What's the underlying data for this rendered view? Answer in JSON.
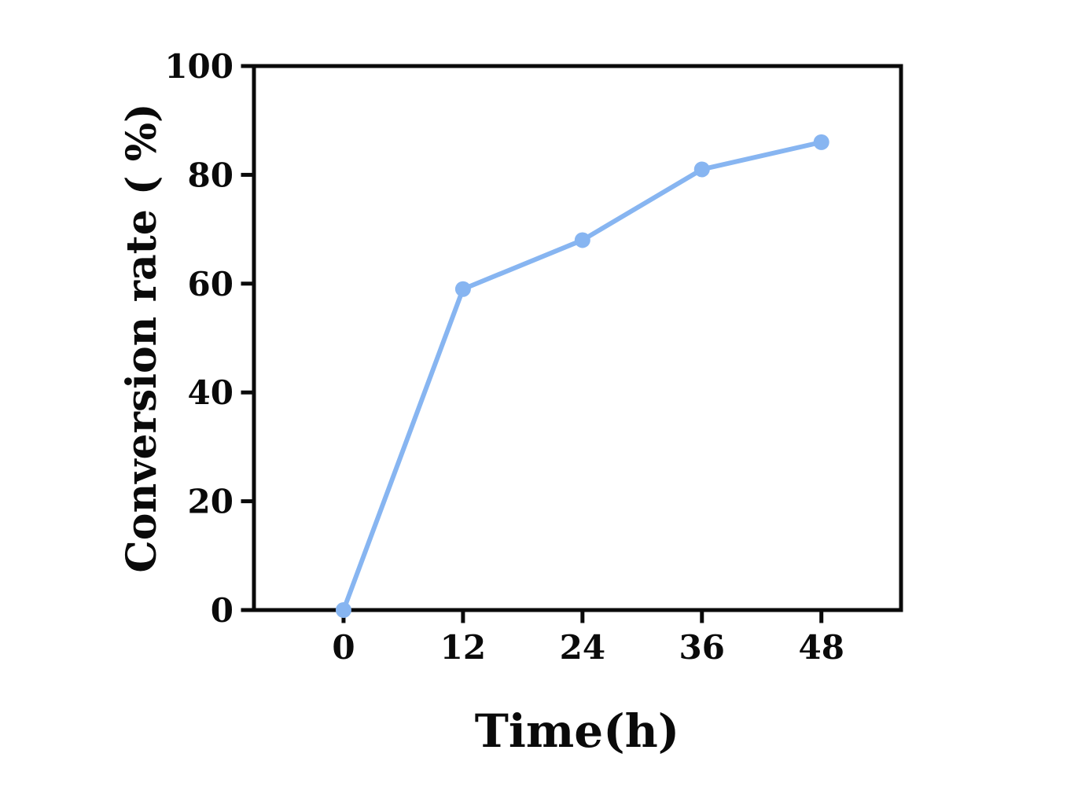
{
  "figure": {
    "background_color": "#ffffff",
    "axis_color": "#0a0a0a",
    "accent_color": "#87b5f1"
  },
  "chart_data": {
    "type": "line",
    "title": "",
    "xlabel": "Time(h)",
    "ylabel": "Conversion rate ( %)",
    "x": [
      0,
      12,
      24,
      36,
      48
    ],
    "series": [
      {
        "name": "Conversion rate",
        "values": [
          0,
          59,
          68,
          81,
          86
        ],
        "line_color": "#87b5f1",
        "marker": "circle",
        "marker_color": "#87b5f1"
      }
    ],
    "x_ticks": [
      0,
      12,
      24,
      36,
      48
    ],
    "y_ticks": [
      0,
      20,
      40,
      60,
      80,
      100
    ],
    "xlim": [
      -9,
      56
    ],
    "ylim": [
      0,
      100
    ],
    "grid": false,
    "legend": "none",
    "frame": "full-box"
  }
}
